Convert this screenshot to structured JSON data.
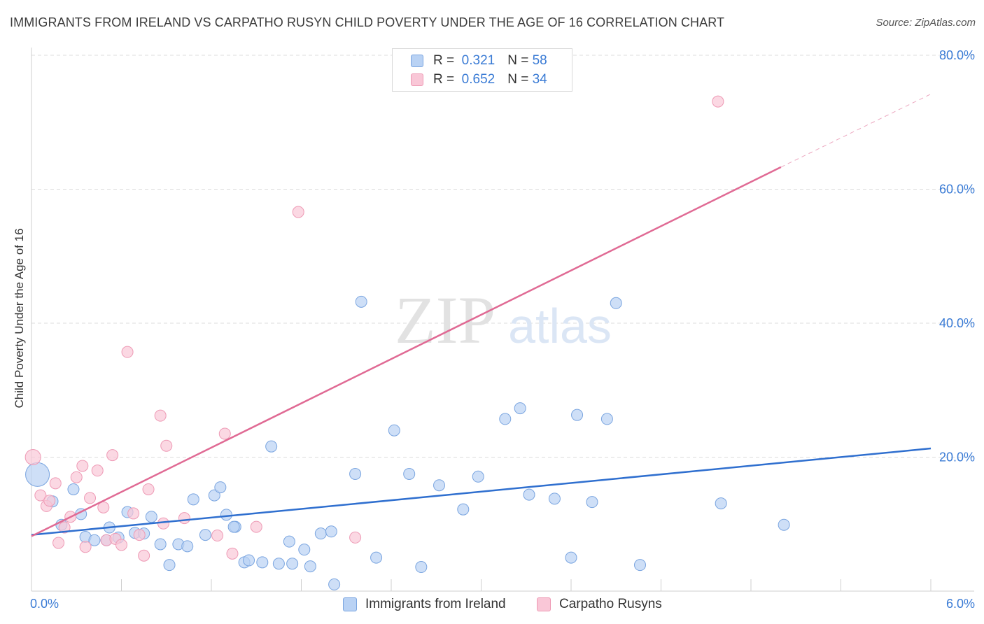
{
  "title": "IMMIGRANTS FROM IRELAND VS CARPATHO RUSYN CHILD POVERTY UNDER THE AGE OF 16 CORRELATION CHART",
  "source": "Source: ZipAtlas.com",
  "watermark": {
    "zip": "ZIP",
    "atlas": "atlas"
  },
  "legend": {
    "r_label": "R =",
    "n_label": "N =",
    "series": [
      {
        "r": "0.321",
        "n": "58"
      },
      {
        "r": "0.652",
        "n": "34"
      }
    ]
  },
  "colors": {
    "blue_fill": "#b9d2f4",
    "blue_stroke": "#7aa5e0",
    "blue_line": "#2f6fcf",
    "pink_fill": "#f9c7d7",
    "pink_stroke": "#ee9ab5",
    "pink_line": "#e06a94",
    "tick_text": "#3a7bd5",
    "grid": "#dcdcdc"
  },
  "chart_data": {
    "type": "scatter",
    "title": "IMMIGRANTS FROM IRELAND VS CARPATHO RUSYN CHILD POVERTY UNDER THE AGE OF 16 CORRELATION CHART",
    "xlabel": "",
    "ylabel": "Child Poverty Under the Age of 16",
    "xlim": [
      0,
      6
    ],
    "ylim": [
      0,
      80
    ],
    "x_tick_labels": [
      "0.0%",
      "6.0%"
    ],
    "y_tick_labels": [
      "20.0%",
      "40.0%",
      "60.0%",
      "80.0%"
    ],
    "y_ticks": [
      20,
      40,
      60,
      80
    ],
    "grid": true,
    "legend_position": "top-center",
    "series": [
      {
        "name": "Immigrants from Ireland",
        "color": "#b9d2f4",
        "trend": {
          "x": [
            0,
            6
          ],
          "y": [
            8.4,
            21.3
          ]
        },
        "points": [
          {
            "x": 0.04,
            "y": 17.4,
            "big": true
          },
          {
            "x": 0.14,
            "y": 13.4
          },
          {
            "x": 0.28,
            "y": 15.2
          },
          {
            "x": 0.2,
            "y": 9.9
          },
          {
            "x": 0.33,
            "y": 11.5
          },
          {
            "x": 0.36,
            "y": 8.1
          },
          {
            "x": 0.42,
            "y": 7.6
          },
          {
            "x": 0.5,
            "y": 7.6
          },
          {
            "x": 0.52,
            "y": 9.5
          },
          {
            "x": 0.58,
            "y": 8.0
          },
          {
            "x": 0.64,
            "y": 11.8
          },
          {
            "x": 0.69,
            "y": 8.7
          },
          {
            "x": 0.75,
            "y": 8.6
          },
          {
            "x": 0.8,
            "y": 11.1
          },
          {
            "x": 0.86,
            "y": 7.0
          },
          {
            "x": 0.92,
            "y": 3.9
          },
          {
            "x": 0.98,
            "y": 7.0
          },
          {
            "x": 1.04,
            "y": 6.7
          },
          {
            "x": 1.08,
            "y": 13.7
          },
          {
            "x": 1.16,
            "y": 8.4
          },
          {
            "x": 1.22,
            "y": 14.3
          },
          {
            "x": 1.26,
            "y": 15.5
          },
          {
            "x": 1.3,
            "y": 11.4
          },
          {
            "x": 1.36,
            "y": 9.6
          },
          {
            "x": 1.42,
            "y": 4.3
          },
          {
            "x": 1.45,
            "y": 4.6
          },
          {
            "x": 1.54,
            "y": 4.3
          },
          {
            "x": 1.6,
            "y": 21.6
          },
          {
            "x": 1.65,
            "y": 4.1
          },
          {
            "x": 1.72,
            "y": 7.4
          },
          {
            "x": 1.74,
            "y": 4.1
          },
          {
            "x": 1.82,
            "y": 6.2
          },
          {
            "x": 1.86,
            "y": 3.7
          },
          {
            "x": 1.93,
            "y": 8.6
          },
          {
            "x": 2.0,
            "y": 8.9
          },
          {
            "x": 2.02,
            "y": 1.0
          },
          {
            "x": 2.16,
            "y": 17.5
          },
          {
            "x": 2.2,
            "y": 43.2
          },
          {
            "x": 2.3,
            "y": 5.0
          },
          {
            "x": 2.42,
            "y": 24.0
          },
          {
            "x": 2.52,
            "y": 17.5
          },
          {
            "x": 2.6,
            "y": 3.6
          },
          {
            "x": 2.72,
            "y": 15.8
          },
          {
            "x": 2.88,
            "y": 12.2
          },
          {
            "x": 2.98,
            "y": 17.1
          },
          {
            "x": 3.16,
            "y": 25.7
          },
          {
            "x": 3.26,
            "y": 27.3
          },
          {
            "x": 3.32,
            "y": 14.4
          },
          {
            "x": 3.49,
            "y": 13.8
          },
          {
            "x": 3.6,
            "y": 5.0
          },
          {
            "x": 3.64,
            "y": 26.3
          },
          {
            "x": 3.74,
            "y": 13.3
          },
          {
            "x": 3.84,
            "y": 25.7
          },
          {
            "x": 3.9,
            "y": 43.0
          },
          {
            "x": 4.06,
            "y": 3.9
          },
          {
            "x": 4.6,
            "y": 13.1
          },
          {
            "x": 5.02,
            "y": 9.9
          },
          {
            "x": 1.35,
            "y": 9.6
          }
        ]
      },
      {
        "name": "Carpatho Rusyns",
        "color": "#f9c7d7",
        "trend": {
          "x": [
            0,
            5.0
          ],
          "y": [
            8.2,
            63.3
          ]
        },
        "trend_dashed": {
          "x": [
            5.0,
            6
          ],
          "y": [
            63.3,
            74.2
          ]
        },
        "points": [
          {
            "x": 0.01,
            "y": 20.0
          },
          {
            "x": 0.06,
            "y": 14.3
          },
          {
            "x": 0.1,
            "y": 12.7
          },
          {
            "x": 0.12,
            "y": 13.5
          },
          {
            "x": 0.16,
            "y": 16.1
          },
          {
            "x": 0.18,
            "y": 7.2
          },
          {
            "x": 0.22,
            "y": 9.5
          },
          {
            "x": 0.26,
            "y": 11.1
          },
          {
            "x": 0.3,
            "y": 17.0
          },
          {
            "x": 0.34,
            "y": 18.7
          },
          {
            "x": 0.36,
            "y": 6.6
          },
          {
            "x": 0.39,
            "y": 13.9
          },
          {
            "x": 0.44,
            "y": 18.0
          },
          {
            "x": 0.48,
            "y": 12.5
          },
          {
            "x": 0.5,
            "y": 7.6
          },
          {
            "x": 0.54,
            "y": 20.3
          },
          {
            "x": 0.56,
            "y": 7.8
          },
          {
            "x": 0.6,
            "y": 6.9
          },
          {
            "x": 0.64,
            "y": 35.7
          },
          {
            "x": 0.68,
            "y": 11.6
          },
          {
            "x": 0.72,
            "y": 8.4
          },
          {
            "x": 0.75,
            "y": 5.3
          },
          {
            "x": 0.78,
            "y": 15.2
          },
          {
            "x": 0.86,
            "y": 26.2
          },
          {
            "x": 0.88,
            "y": 10.1
          },
          {
            "x": 0.9,
            "y": 21.7
          },
          {
            "x": 1.02,
            "y": 10.9
          },
          {
            "x": 1.24,
            "y": 8.3
          },
          {
            "x": 1.29,
            "y": 23.5
          },
          {
            "x": 1.34,
            "y": 5.6
          },
          {
            "x": 1.5,
            "y": 9.6
          },
          {
            "x": 1.78,
            "y": 56.6
          },
          {
            "x": 2.16,
            "y": 8.0
          },
          {
            "x": 4.58,
            "y": 73.1
          }
        ]
      }
    ]
  },
  "bottom_legend": [
    "Immigrants from Ireland",
    "Carpatho Rusyns"
  ]
}
